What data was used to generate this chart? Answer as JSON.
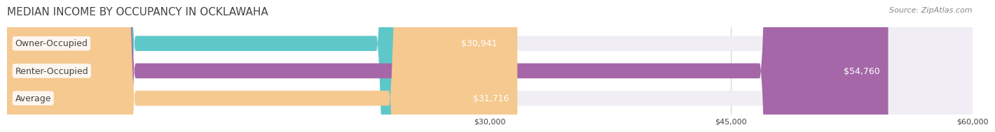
{
  "title": "MEDIAN INCOME BY OCCUPANCY IN OCKLAWAHA",
  "source": "Source: ZipAtlas.com",
  "categories": [
    "Owner-Occupied",
    "Renter-Occupied",
    "Average"
  ],
  "values": [
    30941,
    54760,
    31716
  ],
  "bar_colors": [
    "#5ec8c8",
    "#a567a8",
    "#f5c990"
  ],
  "bar_bg_color": "#f0eef4",
  "value_labels": [
    "$30,941",
    "$54,760",
    "$31,716"
  ],
  "xlim": [
    0,
    60000
  ],
  "xticks": [
    30000,
    45000,
    60000
  ],
  "xtick_labels": [
    "$30,000",
    "$45,000",
    "$60,000"
  ],
  "title_fontsize": 11,
  "label_fontsize": 9,
  "tick_fontsize": 8,
  "source_fontsize": 8,
  "bar_height": 0.55,
  "fig_width": 14.06,
  "fig_height": 1.96,
  "fig_bg_color": "#ffffff",
  "text_color": "#444444",
  "value_inside_color": "#ffffff",
  "value_outside_color": "#555555"
}
